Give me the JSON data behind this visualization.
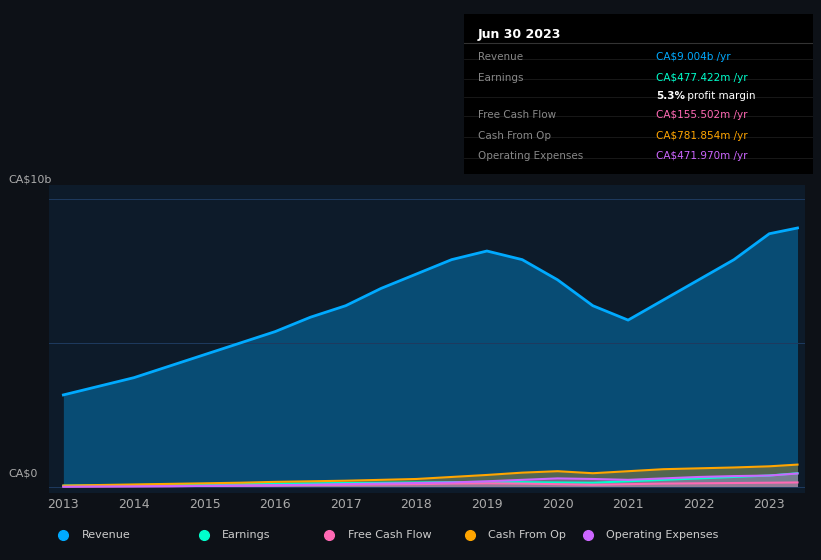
{
  "background_color": "#0d1117",
  "plot_bg_color": "#0d1b2a",
  "title_box": {
    "date": "Jun 30 2023",
    "rows": [
      {
        "label": "Revenue",
        "value": "CA$9.004b /yr",
        "value_color": "#00aaff"
      },
      {
        "label": "Earnings",
        "value": "CA$477.422m /yr",
        "value_color": "#00ffcc"
      },
      {
        "label": "",
        "value": "5.3% profit margin",
        "value_color": "#ffffff",
        "bold_part": "5.3%"
      },
      {
        "label": "Free Cash Flow",
        "value": "CA$155.502m /yr",
        "value_color": "#ff69b4"
      },
      {
        "label": "Cash From Op",
        "value": "CA$781.854m /yr",
        "value_color": "#ffa500"
      },
      {
        "label": "Operating Expenses",
        "value": "CA$471.970m /yr",
        "value_color": "#cc66ff"
      }
    ]
  },
  "ylabel_top": "CA$10b",
  "ylabel_bottom": "CA$0",
  "x_years": [
    2013,
    2013.5,
    2014,
    2014.5,
    2015,
    2015.5,
    2016,
    2016.5,
    2017,
    2017.5,
    2018,
    2018.5,
    2019,
    2019.5,
    2020,
    2020.5,
    2021,
    2021.5,
    2022,
    2022.5,
    2023,
    2023.4
  ],
  "revenue": [
    3.2,
    3.5,
    3.8,
    4.2,
    4.6,
    5.0,
    5.4,
    5.9,
    6.3,
    6.9,
    7.4,
    7.9,
    8.2,
    7.9,
    7.2,
    6.3,
    5.8,
    6.5,
    7.2,
    7.9,
    8.8,
    9.0
  ],
  "earnings": [
    0.05,
    0.06,
    0.07,
    0.08,
    0.09,
    0.1,
    0.12,
    0.13,
    0.14,
    0.15,
    0.16,
    0.17,
    0.18,
    0.17,
    0.16,
    0.15,
    0.2,
    0.25,
    0.3,
    0.35,
    0.4,
    0.48
  ],
  "fcf": [
    0.02,
    0.02,
    0.03,
    0.03,
    0.04,
    0.05,
    0.06,
    0.07,
    0.08,
    0.09,
    0.1,
    0.12,
    0.13,
    0.12,
    0.1,
    0.08,
    0.1,
    0.12,
    0.13,
    0.14,
    0.15,
    0.16
  ],
  "cash_from_op": [
    0.05,
    0.07,
    0.09,
    0.11,
    0.13,
    0.15,
    0.18,
    0.2,
    0.22,
    0.25,
    0.28,
    0.35,
    0.42,
    0.5,
    0.55,
    0.48,
    0.55,
    0.62,
    0.65,
    0.68,
    0.72,
    0.78
  ],
  "op_expenses": [
    0.01,
    0.02,
    0.02,
    0.03,
    0.04,
    0.05,
    0.06,
    0.08,
    0.1,
    0.12,
    0.14,
    0.16,
    0.2,
    0.25,
    0.3,
    0.28,
    0.25,
    0.3,
    0.35,
    0.38,
    0.4,
    0.47
  ],
  "revenue_color": "#00aaff",
  "earnings_color": "#00ffcc",
  "fcf_color": "#ff69b4",
  "cash_from_op_color": "#ffa500",
  "op_expenses_color": "#cc66ff",
  "revenue_fill": "#003355",
  "x_ticks": [
    2013,
    2014,
    2015,
    2016,
    2017,
    2018,
    2019,
    2020,
    2021,
    2022,
    2023
  ],
  "grid_color": "#1e3a5f",
  "text_color": "#aaaaaa",
  "legend": [
    {
      "label": "Revenue",
      "color": "#00aaff",
      "marker": "o"
    },
    {
      "label": "Earnings",
      "color": "#00ffcc",
      "marker": "o"
    },
    {
      "label": "Free Cash Flow",
      "color": "#ff69b4",
      "marker": "o"
    },
    {
      "label": "Cash From Op",
      "color": "#ffa500",
      "marker": "o"
    },
    {
      "label": "Operating Expenses",
      "color": "#cc66ff",
      "marker": "o"
    }
  ]
}
